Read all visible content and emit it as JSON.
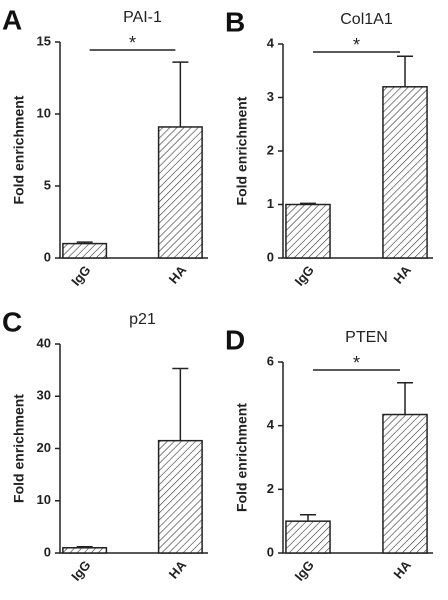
{
  "chart_data": [
    {
      "type": "bar",
      "panel": "A",
      "title": "PAI-1",
      "y_label": "Fold enrichment",
      "categories": [
        "IgG",
        "HA"
      ],
      "values": [
        1.0,
        9.1
      ],
      "errors": [
        0.1,
        4.5
      ],
      "ylim": [
        0,
        15
      ],
      "yticks": [
        0,
        5,
        10,
        15
      ],
      "significance": "*"
    },
    {
      "type": "bar",
      "panel": "B",
      "title": "Col1A1",
      "y_label": "Fold enrichment",
      "categories": [
        "IgG",
        "HA"
      ],
      "values": [
        1.0,
        3.2
      ],
      "errors": [
        0.02,
        0.57
      ],
      "ylim": [
        0,
        4
      ],
      "yticks": [
        0,
        1,
        2,
        3,
        4
      ],
      "significance": "*"
    },
    {
      "type": "bar",
      "panel": "C",
      "title": "p21",
      "y_label": "Fold enrichment",
      "categories": [
        "IgG",
        "HA"
      ],
      "values": [
        1.0,
        21.5
      ],
      "errors": [
        0.2,
        13.8
      ],
      "ylim": [
        0,
        40
      ],
      "yticks": [
        0,
        10,
        20,
        30,
        40
      ]
    },
    {
      "type": "bar",
      "panel": "D",
      "title": "PTEN",
      "y_label": "Fold enrichment",
      "categories": [
        "IgG",
        "HA"
      ],
      "values": [
        1.0,
        4.35
      ],
      "errors": [
        0.2,
        1.0
      ],
      "ylim": [
        0,
        6
      ],
      "yticks": [
        0,
        2,
        4,
        6
      ],
      "significance": "*"
    }
  ]
}
